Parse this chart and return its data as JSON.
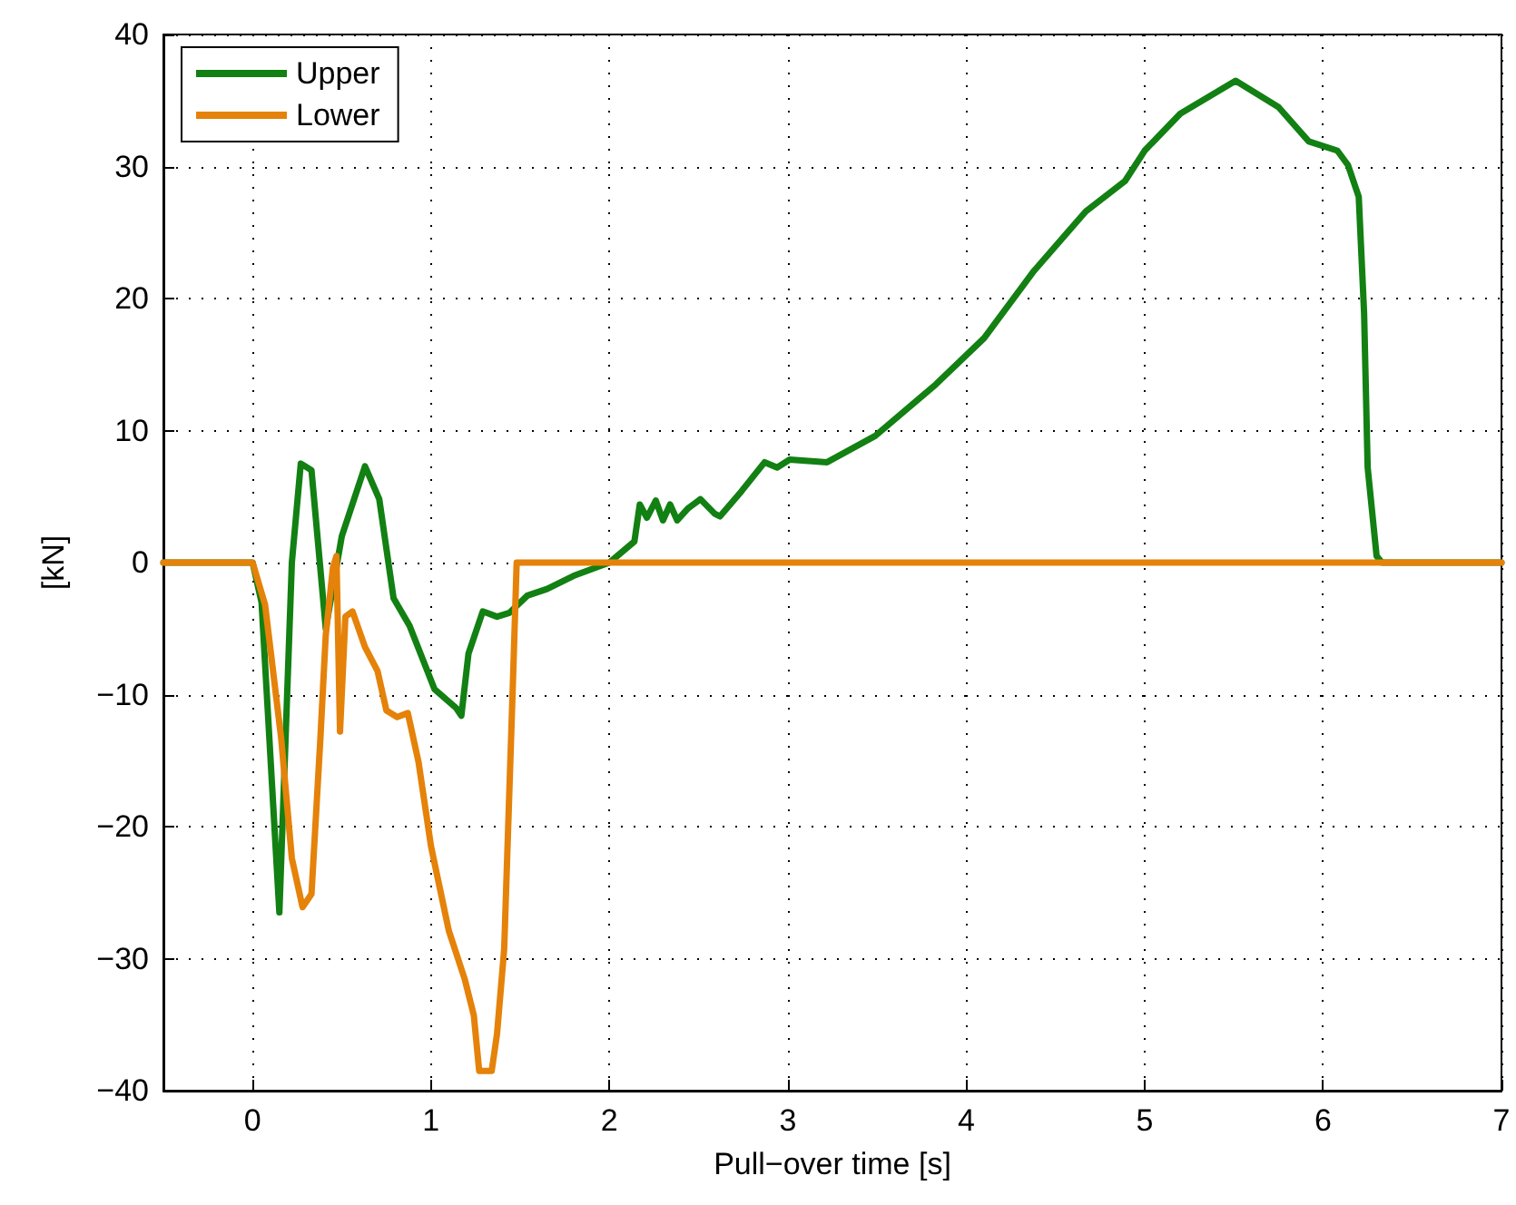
{
  "chart_data": {
    "type": "line",
    "xlabel": "Pull−over time [s]",
    "ylabel": "[kN]",
    "xlim": [
      -0.5,
      7
    ],
    "xticks": [
      0,
      1,
      2,
      3,
      4,
      5,
      6,
      7
    ],
    "ylim": [
      -40,
      40
    ],
    "yticks": [
      -40,
      -30,
      -20,
      -10,
      0,
      10,
      20,
      30,
      40
    ],
    "grid": true,
    "legend": "top left",
    "marker": "none",
    "line_style": "solid",
    "series": [
      {
        "name": "Upper",
        "color": "#128012",
        "x": [
          -0.5,
          0,
          0.05,
          0.15,
          0.22,
          0.27,
          0.33,
          0.41,
          0.5,
          0.63,
          0.71,
          0.79,
          0.88,
          1.02,
          1.14,
          1.17,
          1.21,
          1.29,
          1.37,
          1.44,
          1.54,
          1.65,
          1.8,
          2.0,
          2.14,
          2.17,
          2.21,
          2.26,
          2.3,
          2.34,
          2.38,
          2.44,
          2.51,
          2.59,
          2.62,
          2.74,
          2.87,
          2.94,
          3.01,
          3.22,
          3.49,
          3.83,
          4.1,
          4.38,
          4.67,
          4.89,
          5.0,
          5.2,
          5.51,
          5.75,
          5.92,
          6.08,
          6.14,
          6.2,
          6.23,
          6.25,
          6.3,
          6.33,
          7
        ],
        "values": [
          0,
          0,
          -3,
          -26.5,
          0,
          7.5,
          7,
          -5,
          2,
          7.3,
          4.8,
          -2.7,
          -4.8,
          -9.6,
          -11,
          -11.6,
          -6.9,
          -3.7,
          -4.1,
          -3.8,
          -2.5,
          -2,
          -1,
          0,
          1.6,
          4.4,
          3.4,
          4.7,
          3.2,
          4.4,
          3.2,
          4.1,
          4.8,
          3.7,
          3.5,
          5.4,
          7.6,
          7.2,
          7.8,
          7.6,
          9.6,
          13.5,
          17,
          22.1,
          26.6,
          28.9,
          31.2,
          34,
          36.5,
          34.5,
          31.9,
          31.2,
          30.1,
          27.7,
          18.9,
          7.2,
          0.5,
          0,
          0
        ]
      },
      {
        "name": "Lower",
        "color": "#e58209",
        "x": [
          -0.5,
          0,
          0.07,
          0.16,
          0.22,
          0.28,
          0.33,
          0.38,
          0.41,
          0.45,
          0.47,
          0.49,
          0.52,
          0.56,
          0.63,
          0.7,
          0.75,
          0.81,
          0.87,
          0.93,
          1.0,
          1.1,
          1.19,
          1.24,
          1.27,
          1.34,
          1.37,
          1.41,
          1.46,
          1.48,
          7
        ],
        "values": [
          0,
          0,
          -3.2,
          -13.3,
          -22.4,
          -26.1,
          -25.1,
          -13.3,
          -5.5,
          -0.4,
          0.5,
          -12.8,
          -4.1,
          -3.7,
          -6.4,
          -8.2,
          -11.2,
          -11.7,
          -11.4,
          -15.1,
          -21.5,
          -27.9,
          -31.6,
          -34.3,
          -38.5,
          -38.5,
          -35.7,
          -29.3,
          -8.7,
          0,
          0
        ]
      }
    ]
  }
}
